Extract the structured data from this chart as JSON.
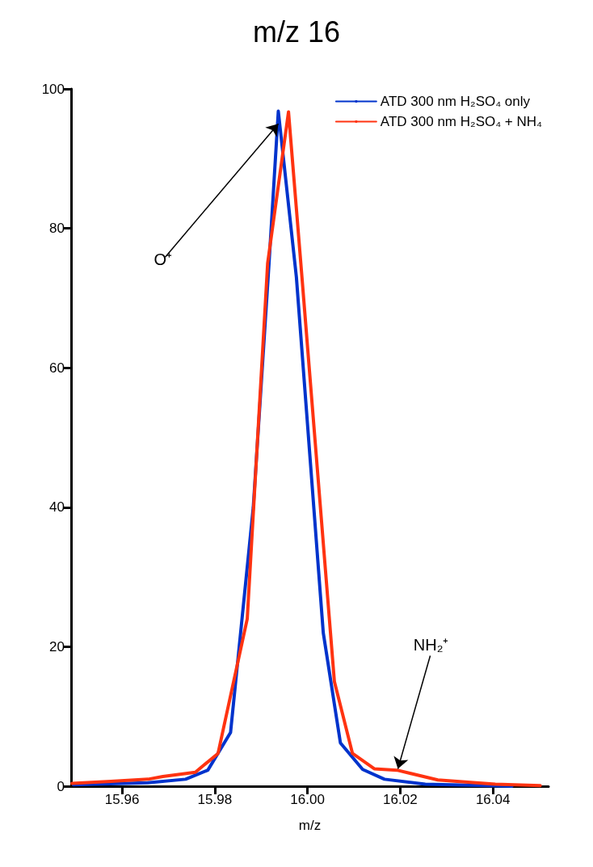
{
  "chart_data": {
    "type": "line",
    "title": "m/z 16",
    "xlabel": "m/z",
    "xlim": [
      15.949,
      16.052
    ],
    "xticks": [
      15.96,
      15.98,
      {
        "value": 16,
        "label": "16.00"
      },
      16.02,
      16.04
    ],
    "ylim": [
      0,
      100
    ],
    "yticks": [
      0,
      20,
      40,
      60,
      80,
      100
    ],
    "grid": false,
    "legend": "top right",
    "marker": "none",
    "line_style": "solid",
    "series": [
      {
        "name": "ATD 300 nm H₂SO₄ only",
        "color": "#0033cc",
        "x": [
          15.9495,
          15.9655,
          15.9737,
          15.9785,
          15.9834,
          15.9883,
          15.9917,
          15.9937,
          15.9976,
          16.0034,
          16.0071,
          16.0119,
          16.0166,
          16.0254,
          16.0441
        ],
        "values": [
          0.2,
          0.5,
          1.0,
          2.3,
          7.7,
          40,
          75,
          96.8,
          73,
          22,
          6.2,
          2.4,
          1.0,
          0.3,
          0
        ]
      },
      {
        "name": "ATD 300 nm H₂SO₄ + NH₄",
        "color": "#ff3311",
        "x": [
          15.9492,
          15.9576,
          15.9656,
          15.9688,
          15.9758,
          15.9807,
          15.987,
          15.9914,
          15.9959,
          15.9988,
          16.0058,
          16.0097,
          16.0144,
          16.0193,
          16.0281,
          16.0405,
          16.0502
        ],
        "values": [
          0.4,
          0.7,
          1.0,
          1.4,
          2.0,
          4.7,
          24,
          75,
          96.7,
          73,
          15,
          4.7,
          2.5,
          2.3,
          0.9,
          0.3,
          0.1
        ]
      }
    ],
    "annotations": [
      {
        "text": "O⁺",
        "x": 15.9937,
        "y": 95
      },
      {
        "text": "NH₂⁺",
        "x": 16.0195,
        "y": 2.5
      }
    ]
  }
}
